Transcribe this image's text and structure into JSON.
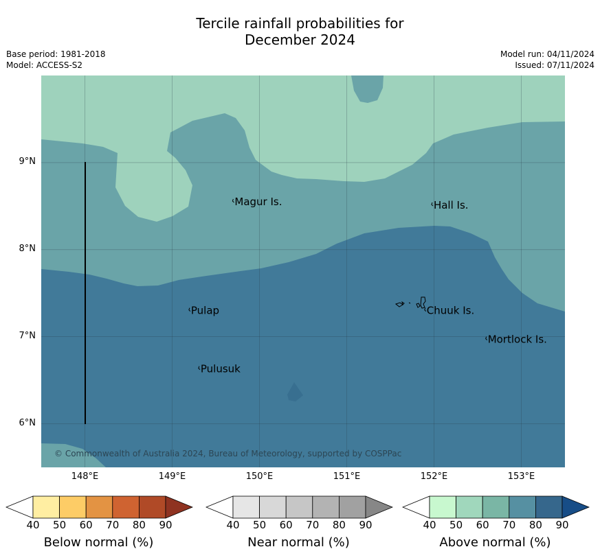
{
  "title_line1": "Tercile rainfall probabilities for",
  "title_line2": "December 2024",
  "base_period": "Base period: 1981-2018",
  "model": "Model: ACCESS-S2",
  "model_run": "Model run: 04/11/2024",
  "issued": "Issued: 07/11/2024",
  "copyright": "© Commonwealth of Australia 2024, Bureau of Meteorology, supported by COSPPac",
  "map": {
    "lon_range": [
      147.5,
      153.5
    ],
    "lat_range": [
      5.5,
      10.0
    ],
    "lat_labels": [
      {
        "lat": 9,
        "text": "9°N"
      },
      {
        "lat": 8,
        "text": "8°N"
      },
      {
        "lat": 7,
        "text": "7°N"
      },
      {
        "lat": 6,
        "text": "6°N"
      }
    ],
    "lon_labels": [
      {
        "lon": 148,
        "text": "148°E"
      },
      {
        "lon": 149,
        "text": "149°E"
      },
      {
        "lon": 150,
        "text": "150°E"
      },
      {
        "lon": 151,
        "text": "151°E"
      },
      {
        "lon": 152,
        "text": "152°E"
      },
      {
        "lon": 153,
        "text": "153°E"
      }
    ],
    "places": [
      {
        "name": "Magur Is.",
        "lon": 149.7,
        "lat": 8.55
      },
      {
        "name": "Hall Is.",
        "lon": 151.98,
        "lat": 8.51
      },
      {
        "name": "Pulap",
        "lon": 149.2,
        "lat": 7.3
      },
      {
        "name": "Chuuk Is.",
        "lon": 151.9,
        "lat": 7.3
      },
      {
        "name": "Mortlock Is.",
        "lon": 152.6,
        "lat": 6.97
      },
      {
        "name": "Pulusuk",
        "lon": 149.31,
        "lat": 6.63
      }
    ],
    "colors": {
      "above_60": "#9ed2bc",
      "above_70": "#6aa4a8",
      "above_80": "#417a99",
      "above_90": "#386f90",
      "grid": "#2a3d48",
      "boundary": "#000000"
    }
  },
  "colorbars": [
    {
      "label": "Below normal (%)",
      "ticks": [
        "40",
        "50",
        "60",
        "70",
        "80",
        "90"
      ],
      "colors": [
        "#ffeea2",
        "#fdcc66",
        "#e39343",
        "#cf6331",
        "#b04a27",
        "#8f3321"
      ]
    },
    {
      "label": "Near normal (%)",
      "ticks": [
        "40",
        "50",
        "60",
        "70",
        "80",
        "90"
      ],
      "colors": [
        "#e6e6e6",
        "#d8d8d8",
        "#c6c6c6",
        "#b3b3b3",
        "#a1a1a1",
        "#878787"
      ]
    },
    {
      "label": "Above normal (%)",
      "ticks": [
        "40",
        "50",
        "60",
        "70",
        "80",
        "90"
      ],
      "colors": [
        "#c8f8cf",
        "#a0d7bc",
        "#7ab6a5",
        "#5690a2",
        "#36678c",
        "#174d87"
      ]
    }
  ]
}
